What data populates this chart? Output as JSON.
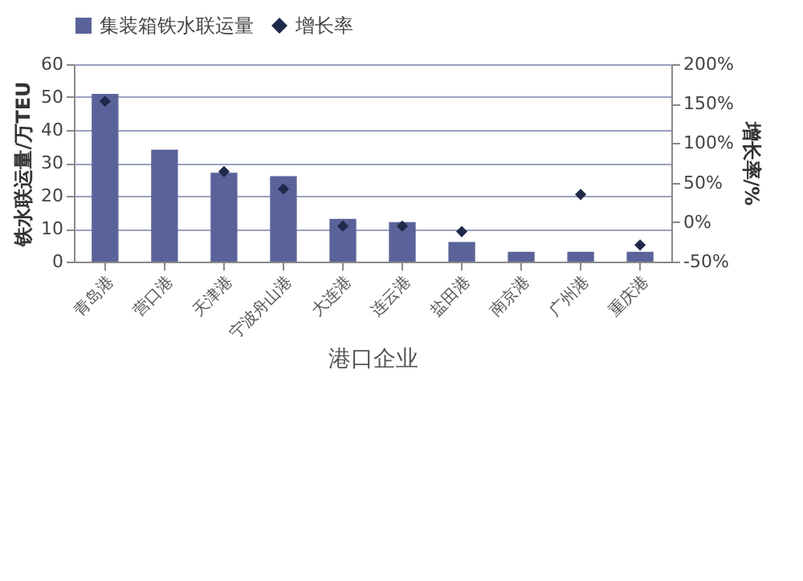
{
  "chart_data": {
    "type": "bar",
    "xlabel": "港口企业",
    "ylabel": "铁水联运量/万TEU",
    "y2label": "增长率/%",
    "categories": [
      "青岛港",
      "营口港",
      "天津港",
      "宁波舟山港",
      "大连港",
      "连云港",
      "盐田港",
      "南京港",
      "广州港",
      "重庆港"
    ],
    "series": [
      {
        "name": "集装箱铁水联运量",
        "color": "#5a6399",
        "values": [
          51,
          34,
          27,
          26,
          13,
          12,
          6,
          3,
          3,
          3
        ]
      },
      {
        "name": "增长率",
        "type": "scatter",
        "axis": "y2",
        "marker": "diamond",
        "color": "#1f2a4a",
        "values": [
          153,
          null,
          64,
          42,
          -5,
          -5,
          -12,
          null,
          35,
          -29
        ]
      }
    ],
    "ylim": [
      0,
      60
    ],
    "yticks": [
      0,
      10,
      20,
      30,
      40,
      50,
      60
    ],
    "y2lim": [
      -50,
      200
    ],
    "y2ticks": [
      {
        "value": -50,
        "label": "-50%"
      },
      {
        "value": 0,
        "label": "0%"
      },
      {
        "value": 50,
        "label": "50%"
      },
      {
        "value": 100,
        "label": "100%"
      },
      {
        "value": 150,
        "label": "150%"
      },
      {
        "value": 200,
        "label": "200%"
      }
    ],
    "grid": "y",
    "legend": "top"
  }
}
